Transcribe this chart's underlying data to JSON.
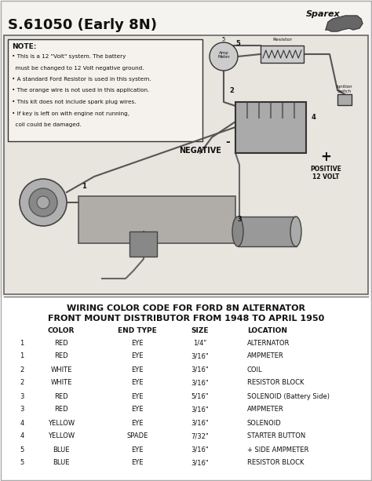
{
  "title": "S.61050 (Early 8N)",
  "bg_color": "#f5f3f0",
  "diagram_bg": "#e8e4de",
  "note_bg": "#f5f2ee",
  "border_color": "#444444",
  "table_title1": "WIRING COLOR CODE FOR FORD 8N ALTERNATOR",
  "table_title2": "FRONT MOUNT DISTRIBUTOR FROM 1948 TO APRIL 1950",
  "col_headers": [
    "COLOR",
    "END TYPE",
    "SIZE",
    "LOCATION"
  ],
  "table_data": [
    [
      "1",
      "RED",
      "EYE",
      "1/4\"",
      "ALTERNATOR"
    ],
    [
      "1",
      "RED",
      "EYE",
      "3/16\"",
      "AMPMETER"
    ],
    [
      "2",
      "WHITE",
      "EYE",
      "3/16\"",
      "COIL"
    ],
    [
      "2",
      "WHITE",
      "EYE",
      "3/16\"",
      "RESISTOR BLOCK"
    ],
    [
      "3",
      "RED",
      "EYE",
      "5/16\"",
      "SOLENOID (Battery Side)"
    ],
    [
      "3",
      "RED",
      "EYE",
      "3/16\"",
      "AMPMETER"
    ],
    [
      "4",
      "YELLOW",
      "EYE",
      "3/16\"",
      "SOLENOID"
    ],
    [
      "4",
      "YELLOW",
      "SPADE",
      "7/32\"",
      "STARTER BUTTON"
    ],
    [
      "5",
      "BLUE",
      "EYE",
      "3/16\"",
      "+ SIDE AMPMETER"
    ],
    [
      "5",
      "BLUE",
      "EYE",
      "3/16\"",
      "RESISTOR BLOCK"
    ]
  ],
  "note_title": "NOTE:",
  "note_lines": [
    "• This is a 12 \"Volt\" system. The battery",
    "  must be changed to 12 Volt negative ground.",
    "• A standard Ford Resistor is used in this system.",
    "• The orange wire is not used in this application.",
    "• This kit does not include spark plug wires.",
    "• If key is left on with engine not running,",
    "  coil could be damaged."
  ],
  "negative_label": "NEGATIVE",
  "positive_label": "POSITIVE",
  "volt_label": "12 VOLT",
  "amp_meter_label": "Amp\nMeter",
  "resistor_label": "Resistor",
  "ignition_label": "Ignition\nSwitch",
  "sparex_text": "Sparex"
}
